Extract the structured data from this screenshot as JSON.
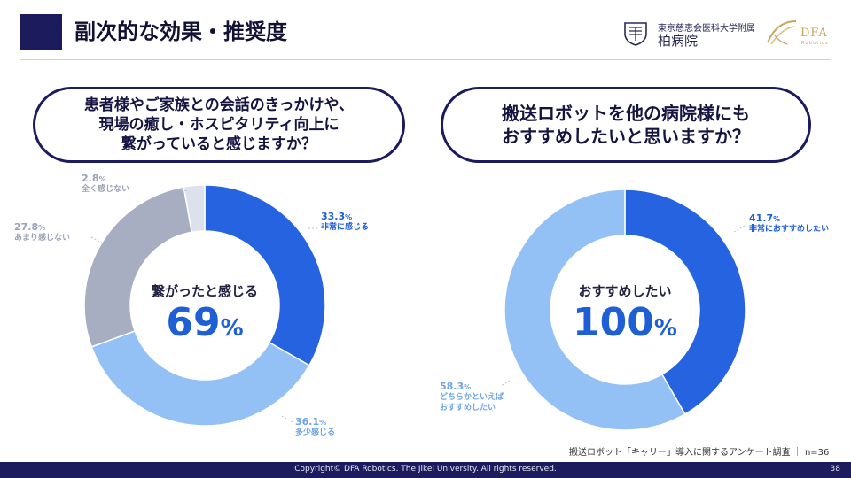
{
  "header": {
    "title": "副次的な効果・推奨度",
    "university": "東京慈恵会医科大学附属",
    "hospital": "柏病院",
    "dfa_logo_text": "DFA",
    "dfa_logo_sub": "Robotics"
  },
  "questions": {
    "left": "患者様やご家族との会話のきっかけや、\n現場の癒し・ホスピタリティ向上に\n繋がっていると感じますか？",
    "right": "搬送ロボットを他の病院様にも\nおすすめしたいと思いますか？"
  },
  "chart_data": [
    {
      "type": "pie",
      "title": "",
      "center_text": "繋がったと感じる",
      "center_value": "69",
      "center_unit": "%",
      "slices": [
        {
          "label": "非常に感じる",
          "value": 33.3,
          "color": "#2563e0"
        },
        {
          "label": "多少感じる",
          "value": 36.1,
          "color": "#93c0f5"
        },
        {
          "label": "あまり感じない",
          "value": 27.8,
          "color": "#a7aec2"
        },
        {
          "label": "全く感じない",
          "value": 2.8,
          "color": "#dde1ec"
        }
      ]
    },
    {
      "type": "pie",
      "title": "",
      "center_text": "おすすめしたい",
      "center_value": "100",
      "center_unit": "%",
      "slices": [
        {
          "label": "非常におすすめしたい",
          "value": 41.7,
          "color": "#2563e0"
        },
        {
          "label": "どちらかといえば\nおすすめしたい",
          "value": 58.3,
          "color": "#93c0f5"
        }
      ]
    }
  ],
  "labels": {
    "pct_unit": "%"
  },
  "footer": {
    "survey_note": "搬送ロボット「キャリー」導入に関するアンケート調査 ｜ n=36",
    "copyright": "Copyright© DFA Robotics. The Jikei University. All rights reserved.",
    "page_number": "38"
  }
}
